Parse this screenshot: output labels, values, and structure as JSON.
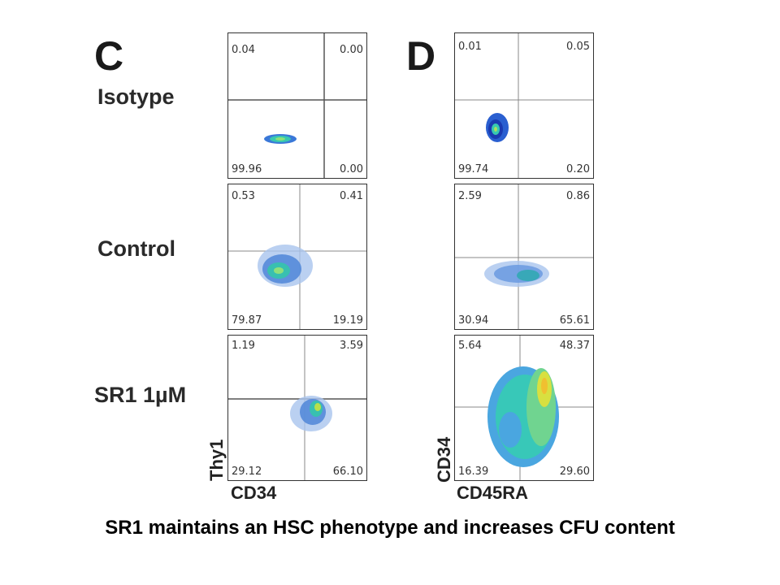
{
  "panels": [
    {
      "letter": "C",
      "x_axis": "CD34",
      "y_axis": "Thy1",
      "plots": [
        {
          "row": "Isotype",
          "ul": "0.04",
          "ur": "0.00",
          "ll": "99.96",
          "lr": "0.00"
        },
        {
          "row": "Control",
          "ul": "0.53",
          "ur": "0.41",
          "ll": "79.87",
          "lr": "19.19"
        },
        {
          "row": "SR1 1µM",
          "ul": "1.19",
          "ur": "3.59",
          "ll": "29.12",
          "lr": "66.10"
        }
      ]
    },
    {
      "letter": "D",
      "x_axis": "CD45RA",
      "y_axis": "CD34",
      "plots": [
        {
          "ul": "0.01",
          "ur": "0.05",
          "ll": "99.74",
          "lr": "0.20"
        },
        {
          "ul": "2.59",
          "ur": "0.86",
          "ll": "30.94",
          "lr": "65.61"
        },
        {
          "ul": "5.64",
          "ur": "48.37",
          "ll": "16.39",
          "lr": "29.60"
        }
      ]
    }
  ],
  "rows": [
    "Isotype",
    "Control",
    "SR1 1µM"
  ],
  "caption": "SR1 maintains an HSC phenotype and increases CFU content"
}
